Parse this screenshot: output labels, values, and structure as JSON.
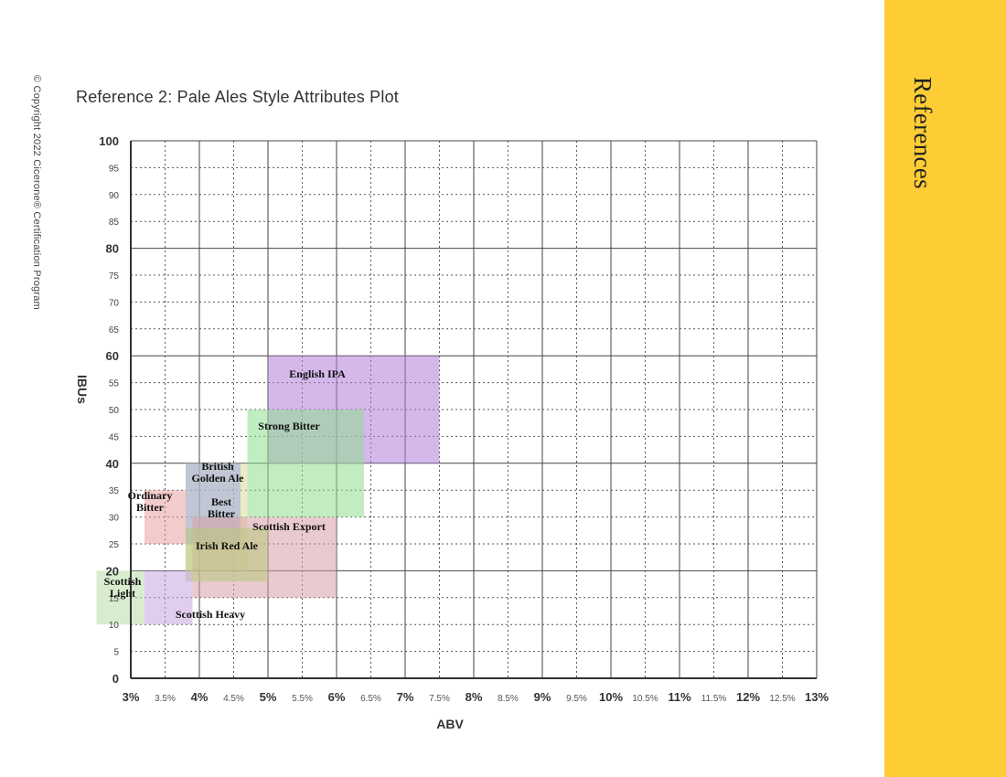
{
  "copyright": "© Copyright 2022 Cicerone® Certification Program",
  "sidebar": {
    "title": "References"
  },
  "chart_data": {
    "type": "range-box",
    "title": "Reference 2: Pale Ales Style Attributes Plot",
    "xlabel": "ABV",
    "ylabel": "IBUs",
    "xlim": [
      3,
      13
    ],
    "ylim": [
      0,
      100
    ],
    "grid": true,
    "x_ticks_major": [
      {
        "value": 3,
        "label": "3%"
      },
      {
        "value": 4,
        "label": "4%"
      },
      {
        "value": 5,
        "label": "5%"
      },
      {
        "value": 6,
        "label": "6%"
      },
      {
        "value": 7,
        "label": "7%"
      },
      {
        "value": 8,
        "label": "8%"
      },
      {
        "value": 9,
        "label": "9%"
      },
      {
        "value": 10,
        "label": "10%"
      },
      {
        "value": 11,
        "label": "11%"
      },
      {
        "value": 12,
        "label": "12%"
      },
      {
        "value": 13,
        "label": "13%"
      }
    ],
    "x_ticks_minor": [
      {
        "value": 3.5,
        "label": "3.5%"
      },
      {
        "value": 4.5,
        "label": "4.5%"
      },
      {
        "value": 5.5,
        "label": "5.5%"
      },
      {
        "value": 6.5,
        "label": "6.5%"
      },
      {
        "value": 7.5,
        "label": "7.5%"
      },
      {
        "value": 8.5,
        "label": "8.5%"
      },
      {
        "value": 9.5,
        "label": "9.5%"
      },
      {
        "value": 10.5,
        "label": "10.5%"
      },
      {
        "value": 11.5,
        "label": "11.5%"
      },
      {
        "value": 12.5,
        "label": "12.5%"
      }
    ],
    "y_ticks_major": [
      0,
      20,
      40,
      60,
      80,
      100
    ],
    "y_ticks_minor": [
      5,
      10,
      15,
      25,
      30,
      35,
      45,
      50,
      55,
      65,
      70,
      75,
      85,
      90,
      95
    ],
    "series": [
      {
        "name": "English IPA",
        "abv": [
          5.0,
          7.5
        ],
        "ibu": [
          40,
          60
        ],
        "color": "#b07ed8",
        "label_lines": [
          "English IPA"
        ]
      },
      {
        "name": "Strong Bitter",
        "abv": [
          4.7,
          6.4
        ],
        "ibu": [
          30,
          50
        ],
        "color": "#8fdd8f",
        "label_lines": [
          "Strong Bitter"
        ]
      },
      {
        "name": "British Golden Ale",
        "abv": [
          3.8,
          4.7
        ],
        "ibu": [
          20,
          40
        ],
        "color": "#d9dd9a",
        "label_lines": [
          "British",
          "Golden Ale"
        ]
      },
      {
        "name": "Ordinary Bitter",
        "abv": [
          3.2,
          3.8
        ],
        "ibu": [
          25,
          35
        ],
        "color": "#e7a1a1",
        "label_lines": [
          "Ordinary",
          "Bitter"
        ]
      },
      {
        "name": "Best Bitter",
        "abv": [
          3.8,
          4.6
        ],
        "ibu": [
          25,
          40
        ],
        "color": "#9da7dc",
        "label_lines": [
          "Best",
          "Bitter"
        ]
      },
      {
        "name": "Scottish Export",
        "abv": [
          3.9,
          6.0
        ],
        "ibu": [
          15,
          30
        ],
        "color": "#d7a0a8",
        "label_lines": [
          "Scottish Export"
        ]
      },
      {
        "name": "Irish Red Ale",
        "abv": [
          3.8,
          5.0
        ],
        "ibu": [
          18,
          28
        ],
        "color": "#b9c97e",
        "label_lines": [
          "Irish Red Ale"
        ]
      },
      {
        "name": "Scottish Heavy",
        "abv": [
          3.2,
          3.9
        ],
        "ibu": [
          10,
          20
        ],
        "color": "#c9a6e0",
        "label_lines": [
          "Scottish Heavy"
        ]
      },
      {
        "name": "Scottish Light",
        "abv": [
          2.5,
          3.2
        ],
        "ibu": [
          10,
          20
        ],
        "color": "#b8dca8",
        "label_lines": [
          "Scottish",
          "Light"
        ]
      }
    ]
  }
}
